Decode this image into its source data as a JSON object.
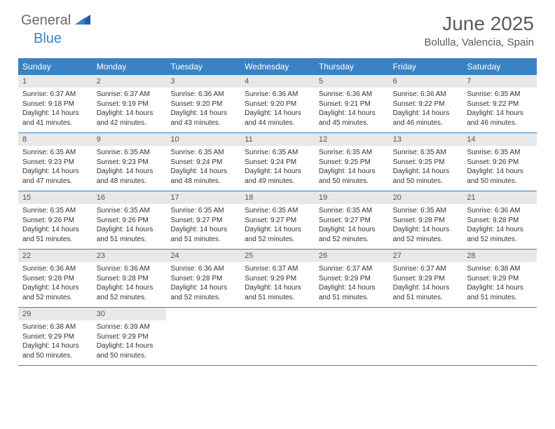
{
  "brand": {
    "word1": "General",
    "word2": "Blue"
  },
  "title": "June 2025",
  "location": "Bolulla, Valencia, Spain",
  "colors": {
    "header_bg": "#3b82c4",
    "header_text": "#ffffff",
    "daynum_bg": "#e8e8e8",
    "text": "#333333",
    "border": "#3b82c4",
    "logo_gray": "#6b6b6b",
    "logo_blue": "#3b82c4"
  },
  "day_names": [
    "Sunday",
    "Monday",
    "Tuesday",
    "Wednesday",
    "Thursday",
    "Friday",
    "Saturday"
  ],
  "weeks": [
    [
      {
        "n": "1",
        "sr": "Sunrise: 6:37 AM",
        "ss": "Sunset: 9:18 PM",
        "d1": "Daylight: 14 hours",
        "d2": "and 41 minutes."
      },
      {
        "n": "2",
        "sr": "Sunrise: 6:37 AM",
        "ss": "Sunset: 9:19 PM",
        "d1": "Daylight: 14 hours",
        "d2": "and 42 minutes."
      },
      {
        "n": "3",
        "sr": "Sunrise: 6:36 AM",
        "ss": "Sunset: 9:20 PM",
        "d1": "Daylight: 14 hours",
        "d2": "and 43 minutes."
      },
      {
        "n": "4",
        "sr": "Sunrise: 6:36 AM",
        "ss": "Sunset: 9:20 PM",
        "d1": "Daylight: 14 hours",
        "d2": "and 44 minutes."
      },
      {
        "n": "5",
        "sr": "Sunrise: 6:36 AM",
        "ss": "Sunset: 9:21 PM",
        "d1": "Daylight: 14 hours",
        "d2": "and 45 minutes."
      },
      {
        "n": "6",
        "sr": "Sunrise: 6:36 AM",
        "ss": "Sunset: 9:22 PM",
        "d1": "Daylight: 14 hours",
        "d2": "and 46 minutes."
      },
      {
        "n": "7",
        "sr": "Sunrise: 6:35 AM",
        "ss": "Sunset: 9:22 PM",
        "d1": "Daylight: 14 hours",
        "d2": "and 46 minutes."
      }
    ],
    [
      {
        "n": "8",
        "sr": "Sunrise: 6:35 AM",
        "ss": "Sunset: 9:23 PM",
        "d1": "Daylight: 14 hours",
        "d2": "and 47 minutes."
      },
      {
        "n": "9",
        "sr": "Sunrise: 6:35 AM",
        "ss": "Sunset: 9:23 PM",
        "d1": "Daylight: 14 hours",
        "d2": "and 48 minutes."
      },
      {
        "n": "10",
        "sr": "Sunrise: 6:35 AM",
        "ss": "Sunset: 9:24 PM",
        "d1": "Daylight: 14 hours",
        "d2": "and 48 minutes."
      },
      {
        "n": "11",
        "sr": "Sunrise: 6:35 AM",
        "ss": "Sunset: 9:24 PM",
        "d1": "Daylight: 14 hours",
        "d2": "and 49 minutes."
      },
      {
        "n": "12",
        "sr": "Sunrise: 6:35 AM",
        "ss": "Sunset: 9:25 PM",
        "d1": "Daylight: 14 hours",
        "d2": "and 50 minutes."
      },
      {
        "n": "13",
        "sr": "Sunrise: 6:35 AM",
        "ss": "Sunset: 9:25 PM",
        "d1": "Daylight: 14 hours",
        "d2": "and 50 minutes."
      },
      {
        "n": "14",
        "sr": "Sunrise: 6:35 AM",
        "ss": "Sunset: 9:26 PM",
        "d1": "Daylight: 14 hours",
        "d2": "and 50 minutes."
      }
    ],
    [
      {
        "n": "15",
        "sr": "Sunrise: 6:35 AM",
        "ss": "Sunset: 9:26 PM",
        "d1": "Daylight: 14 hours",
        "d2": "and 51 minutes."
      },
      {
        "n": "16",
        "sr": "Sunrise: 6:35 AM",
        "ss": "Sunset: 9:26 PM",
        "d1": "Daylight: 14 hours",
        "d2": "and 51 minutes."
      },
      {
        "n": "17",
        "sr": "Sunrise: 6:35 AM",
        "ss": "Sunset: 9:27 PM",
        "d1": "Daylight: 14 hours",
        "d2": "and 51 minutes."
      },
      {
        "n": "18",
        "sr": "Sunrise: 6:35 AM",
        "ss": "Sunset: 9:27 PM",
        "d1": "Daylight: 14 hours",
        "d2": "and 52 minutes."
      },
      {
        "n": "19",
        "sr": "Sunrise: 6:35 AM",
        "ss": "Sunset: 9:27 PM",
        "d1": "Daylight: 14 hours",
        "d2": "and 52 minutes."
      },
      {
        "n": "20",
        "sr": "Sunrise: 6:35 AM",
        "ss": "Sunset: 9:28 PM",
        "d1": "Daylight: 14 hours",
        "d2": "and 52 minutes."
      },
      {
        "n": "21",
        "sr": "Sunrise: 6:36 AM",
        "ss": "Sunset: 9:28 PM",
        "d1": "Daylight: 14 hours",
        "d2": "and 52 minutes."
      }
    ],
    [
      {
        "n": "22",
        "sr": "Sunrise: 6:36 AM",
        "ss": "Sunset: 9:28 PM",
        "d1": "Daylight: 14 hours",
        "d2": "and 52 minutes."
      },
      {
        "n": "23",
        "sr": "Sunrise: 6:36 AM",
        "ss": "Sunset: 9:28 PM",
        "d1": "Daylight: 14 hours",
        "d2": "and 52 minutes."
      },
      {
        "n": "24",
        "sr": "Sunrise: 6:36 AM",
        "ss": "Sunset: 9:28 PM",
        "d1": "Daylight: 14 hours",
        "d2": "and 52 minutes."
      },
      {
        "n": "25",
        "sr": "Sunrise: 6:37 AM",
        "ss": "Sunset: 9:29 PM",
        "d1": "Daylight: 14 hours",
        "d2": "and 51 minutes."
      },
      {
        "n": "26",
        "sr": "Sunrise: 6:37 AM",
        "ss": "Sunset: 9:29 PM",
        "d1": "Daylight: 14 hours",
        "d2": "and 51 minutes."
      },
      {
        "n": "27",
        "sr": "Sunrise: 6:37 AM",
        "ss": "Sunset: 9:29 PM",
        "d1": "Daylight: 14 hours",
        "d2": "and 51 minutes."
      },
      {
        "n": "28",
        "sr": "Sunrise: 6:38 AM",
        "ss": "Sunset: 9:29 PM",
        "d1": "Daylight: 14 hours",
        "d2": "and 51 minutes."
      }
    ],
    [
      {
        "n": "29",
        "sr": "Sunrise: 6:38 AM",
        "ss": "Sunset: 9:29 PM",
        "d1": "Daylight: 14 hours",
        "d2": "and 50 minutes."
      },
      {
        "n": "30",
        "sr": "Sunrise: 6:39 AM",
        "ss": "Sunset: 9:29 PM",
        "d1": "Daylight: 14 hours",
        "d2": "and 50 minutes."
      },
      {
        "empty": true
      },
      {
        "empty": true
      },
      {
        "empty": true
      },
      {
        "empty": true
      },
      {
        "empty": true
      }
    ]
  ]
}
